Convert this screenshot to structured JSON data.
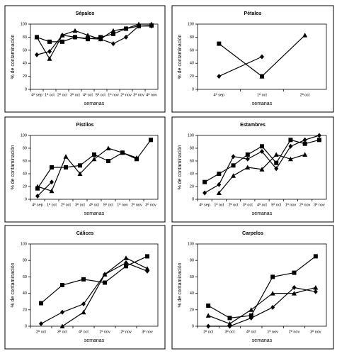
{
  "chart_data": [
    {
      "type": "line",
      "title": "Sépalos",
      "y_label": "% de contaminación",
      "x_label": "semanas",
      "categories": [
        "4º sep",
        "1º oct",
        "2º oct",
        "3º oct",
        "4º oct",
        "5º oct",
        "1º nov",
        "2º nov",
        "3º nov",
        "4º nov"
      ],
      "series": [
        {
          "marker": "diamond",
          "color": "#000000",
          "values": [
            53,
            58,
            83,
            80,
            78,
            77,
            70,
            80,
            97,
            97
          ]
        },
        {
          "marker": "square",
          "color": "#000000",
          "values": [
            80,
            73,
            73,
            80,
            77,
            80,
            85,
            93,
            97,
            98
          ]
        },
        {
          "marker": "triangle",
          "color": "#000000",
          "values": [
            80,
            47,
            83,
            90,
            83,
            77,
            90,
            93,
            100,
            100
          ]
        }
      ],
      "ylim": [
        0,
        100
      ],
      "yticks": [
        0,
        20,
        40,
        60,
        80,
        100
      ]
    },
    {
      "type": "line",
      "title": "Pétalos",
      "y_label": "% de contaminación",
      "x_label": "semanas",
      "categories": [
        "4º sep",
        "1º oct",
        "2º oct"
      ],
      "series": [
        {
          "marker": "diamond",
          "color": "#000000",
          "values": [
            20,
            50,
            null
          ]
        },
        {
          "marker": "square",
          "color": "#000000",
          "values": [
            70,
            20,
            null
          ]
        },
        {
          "marker": "triangle",
          "color": "#000000",
          "values": [
            null,
            20,
            83
          ]
        }
      ],
      "ylim": [
        0,
        100
      ],
      "yticks": [
        0,
        20,
        40,
        60,
        80,
        100
      ]
    },
    {
      "type": "line",
      "title": "Pistilos",
      "y_label": "% de contaminación",
      "x_label": "semanas",
      "categories": [
        "4º sep",
        "1º oct",
        "2º oct",
        "3º oct",
        "4º oct",
        "5º oct",
        "1º nov",
        "2º nov",
        "3º nov"
      ],
      "series": [
        {
          "marker": "diamond",
          "color": "#000000",
          "values": [
            5,
            27,
            null,
            null,
            null,
            null,
            null,
            null,
            null
          ]
        },
        {
          "marker": "square",
          "color": "#000000",
          "values": [
            17,
            50,
            50,
            53,
            70,
            60,
            73,
            63,
            93
          ]
        },
        {
          "marker": "triangle",
          "color": "#000000",
          "values": [
            20,
            13,
            67,
            40,
            63,
            80,
            73,
            65,
            null
          ]
        }
      ],
      "ylim": [
        0,
        100
      ],
      "yticks": [
        0,
        20,
        40,
        60,
        80,
        100
      ]
    },
    {
      "type": "line",
      "title": "Estambres",
      "y_label": "% de contaminación",
      "x_label": "semanas",
      "categories": [
        "4º sep",
        "1º oct",
        "2º oct",
        "3º oct",
        "4º oct",
        "5º oct",
        "1º nov",
        "2º nov",
        "3º nov"
      ],
      "series": [
        {
          "marker": "diamond",
          "color": "#000000",
          "values": [
            10,
            23,
            67,
            63,
            75,
            48,
            83,
            93,
            100
          ]
        },
        {
          "marker": "square",
          "color": "#000000",
          "values": [
            27,
            40,
            53,
            70,
            83,
            57,
            93,
            87,
            93
          ]
        },
        {
          "marker": "triangle",
          "color": "#000000",
          "values": [
            null,
            10,
            37,
            50,
            47,
            70,
            63,
            70,
            null
          ]
        }
      ],
      "ylim": [
        0,
        100
      ],
      "yticks": [
        0,
        20,
        40,
        60,
        80,
        100
      ]
    },
    {
      "type": "line",
      "title": "Cálices",
      "y_label": "% de contaminación",
      "x_label": "semanas",
      "categories": [
        "2º oct",
        "3º oct",
        "4º oct",
        "1º nov",
        "2º nov",
        "3º nov"
      ],
      "series": [
        {
          "marker": "diamond",
          "color": "#000000",
          "values": [
            3,
            17,
            27,
            63,
            77,
            67
          ]
        },
        {
          "marker": "square",
          "color": "#000000",
          "values": [
            28,
            50,
            57,
            53,
            73,
            85
          ]
        },
        {
          "marker": "triangle",
          "color": "#000000",
          "values": [
            null,
            0,
            17,
            63,
            83,
            70
          ]
        }
      ],
      "ylim": [
        0,
        100
      ],
      "yticks": [
        0,
        20,
        40,
        60,
        80,
        100
      ]
    },
    {
      "type": "line",
      "title": "Carpelos",
      "y_label": "% de contaminación",
      "x_label": "semanas",
      "categories": [
        "2º oct",
        "3º oct",
        "4º oct",
        "1º nov",
        "2º nov",
        "3º nov"
      ],
      "series": [
        {
          "marker": "diamond",
          "color": "#000000",
          "values": [
            0,
            0,
            10,
            23,
            47,
            42
          ]
        },
        {
          "marker": "square",
          "color": "#000000",
          "values": [
            25,
            10,
            13,
            60,
            65,
            85
          ]
        },
        {
          "marker": "triangle",
          "color": "#000000",
          "values": [
            13,
            3,
            20,
            40,
            40,
            47
          ]
        }
      ],
      "ylim": [
        0,
        100
      ],
      "yticks": [
        0,
        20,
        40,
        60,
        80,
        100
      ]
    }
  ]
}
